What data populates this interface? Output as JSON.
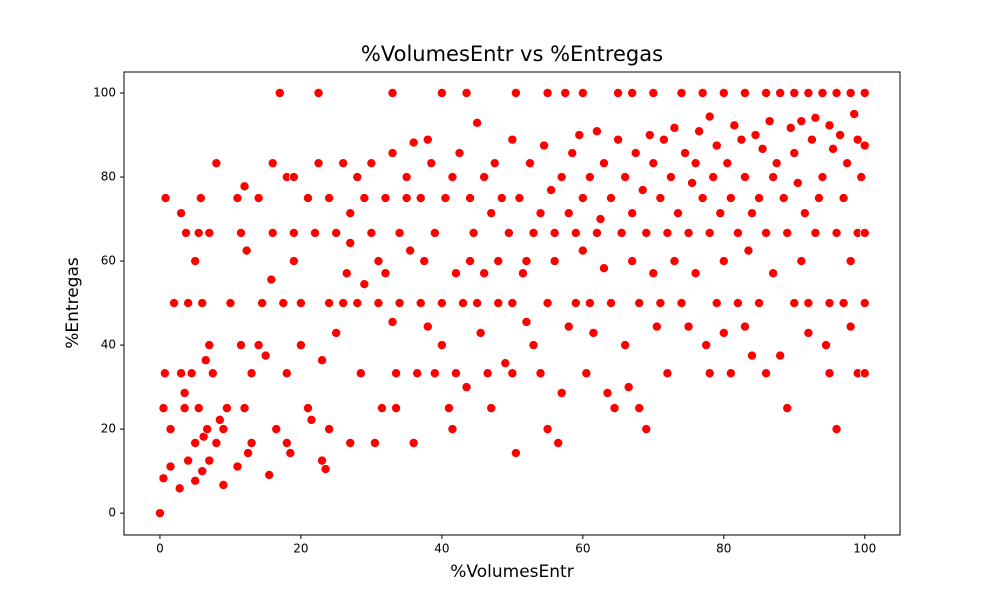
{
  "chart_data": {
    "type": "scatter",
    "title": "%VolumesEntr vs %Entregas",
    "x_label": "%VolumesEntr",
    "y_label": "%Entregas",
    "x": [
      0,
      0.5,
      0.5,
      0.7,
      0.8,
      1.5,
      1.5,
      2,
      2.8,
      3,
      3,
      3.5,
      3.5,
      3.7,
      4,
      4,
      4.5,
      5,
      5,
      5,
      5.5,
      5.5,
      5.8,
      6,
      6,
      6.2,
      6.5,
      6.7,
      7,
      7,
      7,
      7.5,
      8,
      8,
      8.5,
      9,
      9,
      9.5,
      10,
      11,
      11,
      11.5,
      11.5,
      12,
      12,
      12.3,
      12.5,
      13,
      13,
      14,
      14,
      14.5,
      15,
      15.5,
      15.8,
      16,
      16,
      16.5,
      17,
      17.5,
      18,
      18,
      18,
      18.5,
      19,
      19,
      19,
      20,
      20,
      21,
      21,
      21.5,
      22,
      22.5,
      22.5,
      23,
      23,
      23.5,
      24,
      24,
      24,
      25,
      25,
      26,
      26,
      26.5,
      27,
      27,
      27,
      28,
      28,
      28.5,
      29,
      29,
      30,
      30,
      30.5,
      31,
      31,
      31.5,
      32,
      32,
      33,
      33,
      33,
      33.5,
      33.5,
      34,
      34,
      35,
      35,
      35.5,
      36,
      36,
      36.5,
      37,
      37,
      37.5,
      38,
      38,
      38.5,
      39,
      39,
      40,
      40,
      40,
      40.5,
      41,
      41.5,
      41.5,
      42,
      42,
      42.5,
      43,
      43.5,
      43.5,
      44,
      44,
      44.5,
      45,
      45,
      45.5,
      46,
      46,
      46.5,
      47,
      47,
      47.5,
      48,
      48,
      48.5,
      49,
      49.5,
      50,
      50,
      50,
      50.5,
      50.5,
      51,
      51.5,
      52,
      52,
      52.5,
      53,
      53,
      54,
      54,
      54.5,
      55,
      55,
      55,
      55.5,
      56,
      56,
      56.5,
      57,
      57,
      57.5,
      58,
      58,
      58.5,
      59,
      59,
      59.5,
      60,
      60,
      60,
      60.5,
      61,
      61,
      61.5,
      62,
      62,
      62.5,
      63,
      63,
      63.5,
      64,
      64,
      64.5,
      65,
      65,
      65.5,
      66,
      66,
      66.5,
      67,
      67,
      67,
      67.5,
      68,
      68,
      68.5,
      69,
      69,
      69.5,
      70,
      70,
      70,
      70.5,
      71,
      71,
      71.5,
      72,
      72,
      72.5,
      73,
      73,
      73.5,
      74,
      74,
      74.5,
      75,
      75,
      75.5,
      76,
      76,
      76.5,
      77,
      77,
      77.5,
      78,
      78,
      78,
      78.5,
      79,
      79,
      79.5,
      80,
      80,
      80,
      80.5,
      81,
      81,
      81.5,
      82,
      82,
      82.5,
      83,
      83,
      83,
      83.5,
      84,
      84,
      84.5,
      85,
      85,
      85.5,
      86,
      86,
      86,
      86.5,
      87,
      87,
      87.5,
      88,
      88,
      88.5,
      89,
      89,
      89.5,
      90,
      90,
      90,
      90.5,
      91,
      91,
      91.5,
      92,
      92,
      92,
      92.5,
      93,
      93,
      93.5,
      94,
      94,
      94.5,
      95,
      95,
      95,
      95.5,
      96,
      96,
      96,
      96.5,
      97,
      97,
      97.5,
      98,
      98,
      98,
      98.5,
      99,
      99,
      99,
      99.5,
      100,
      100,
      100,
      100,
      100
    ],
    "values": [
      0,
      8.3,
      25,
      33.3,
      75,
      11.1,
      20,
      50,
      5.9,
      33.3,
      71.4,
      28.6,
      25,
      66.7,
      12.5,
      50,
      33.3,
      16.7,
      7.7,
      60,
      25,
      66.7,
      75,
      50,
      10,
      18.2,
      36.4,
      20,
      66.7,
      12.5,
      40,
      33.3,
      16.7,
      83.3,
      22.2,
      6.7,
      20,
      25,
      50,
      75,
      11.1,
      40,
      66.7,
      25,
      77.8,
      62.5,
      14.3,
      33.3,
      16.7,
      75,
      40,
      50,
      37.5,
      9.1,
      55.6,
      83.3,
      66.7,
      20,
      100,
      50,
      80,
      33.3,
      16.7,
      14.3,
      66.7,
      60,
      80,
      40,
      50,
      75,
      25,
      22.2,
      66.7,
      100,
      83.3,
      12.5,
      36.4,
      10.5,
      75,
      20,
      50,
      42.9,
      66.7,
      83.3,
      50,
      57.1,
      71.4,
      16.7,
      64.3,
      80,
      50,
      33.3,
      75,
      54.5,
      66.7,
      83.3,
      16.7,
      60,
      50,
      25,
      57.1,
      75,
      45.5,
      100,
      85.7,
      33.3,
      25,
      50,
      66.7,
      80,
      75,
      62.5,
      16.7,
      88.2,
      33.3,
      50,
      75,
      60,
      88.9,
      44.4,
      83.3,
      33.3,
      66.7,
      100,
      50,
      40,
      75,
      25,
      80,
      20,
      57.1,
      33.3,
      85.7,
      50,
      100,
      30,
      60,
      75,
      66.7,
      92.9,
      50,
      42.9,
      80,
      57.1,
      33.3,
      25,
      71.4,
      83.3,
      60,
      50,
      75,
      35.7,
      66.7,
      88.9,
      50,
      33.3,
      14.3,
      100,
      75,
      57.1,
      45.5,
      60,
      83.3,
      66.7,
      40,
      71.4,
      33.3,
      87.5,
      100,
      50,
      20,
      76.9,
      66.7,
      60,
      16.7,
      80,
      28.6,
      100,
      71.4,
      44.4,
      85.7,
      50,
      66.7,
      90,
      100,
      75,
      62.5,
      33.3,
      80,
      50,
      42.9,
      90.9,
      66.7,
      70,
      58.3,
      83.3,
      28.6,
      75,
      50,
      25,
      88.9,
      100,
      66.7,
      80,
      40,
      30,
      71.4,
      60,
      100,
      85.7,
      50,
      25,
      76.9,
      66.7,
      20,
      90,
      100,
      83.3,
      57.1,
      44.4,
      75,
      50,
      88.9,
      66.7,
      33.3,
      80,
      91.7,
      60,
      71.4,
      100,
      50,
      85.7,
      66.7,
      44.4,
      78.6,
      83.3,
      57.1,
      90.9,
      75,
      100,
      40,
      94.4,
      66.7,
      33.3,
      80,
      50,
      87.5,
      71.4,
      100,
      60,
      42.9,
      83.3,
      75,
      33.3,
      92.3,
      66.7,
      50,
      88.9,
      100,
      80,
      44.4,
      62.5,
      71.4,
      37.5,
      90,
      75,
      50,
      86.7,
      100,
      66.7,
      33.3,
      93.3,
      80,
      57.1,
      83.3,
      100,
      37.5,
      75,
      25,
      66.7,
      91.7,
      100,
      50,
      85.7,
      78.6,
      60,
      93.3,
      71.4,
      100,
      50,
      42.9,
      88.9,
      66.7,
      94.1,
      75,
      100,
      80,
      40,
      92.3,
      50,
      33.3,
      86.7,
      66.7,
      100,
      20,
      90,
      75,
      50,
      83.3,
      100,
      60,
      44.4,
      95,
      66.7,
      33.3,
      88.9,
      80,
      100,
      50,
      66.7,
      33.3,
      87.5
    ],
    "color": "#ff0000",
    "xlim": [
      -5.1,
      105
    ],
    "ylim": [
      -5.2,
      105
    ],
    "xticks": [
      0,
      20,
      40,
      60,
      80,
      100
    ],
    "yticks": [
      0,
      20,
      40,
      60,
      80,
      100
    ]
  }
}
